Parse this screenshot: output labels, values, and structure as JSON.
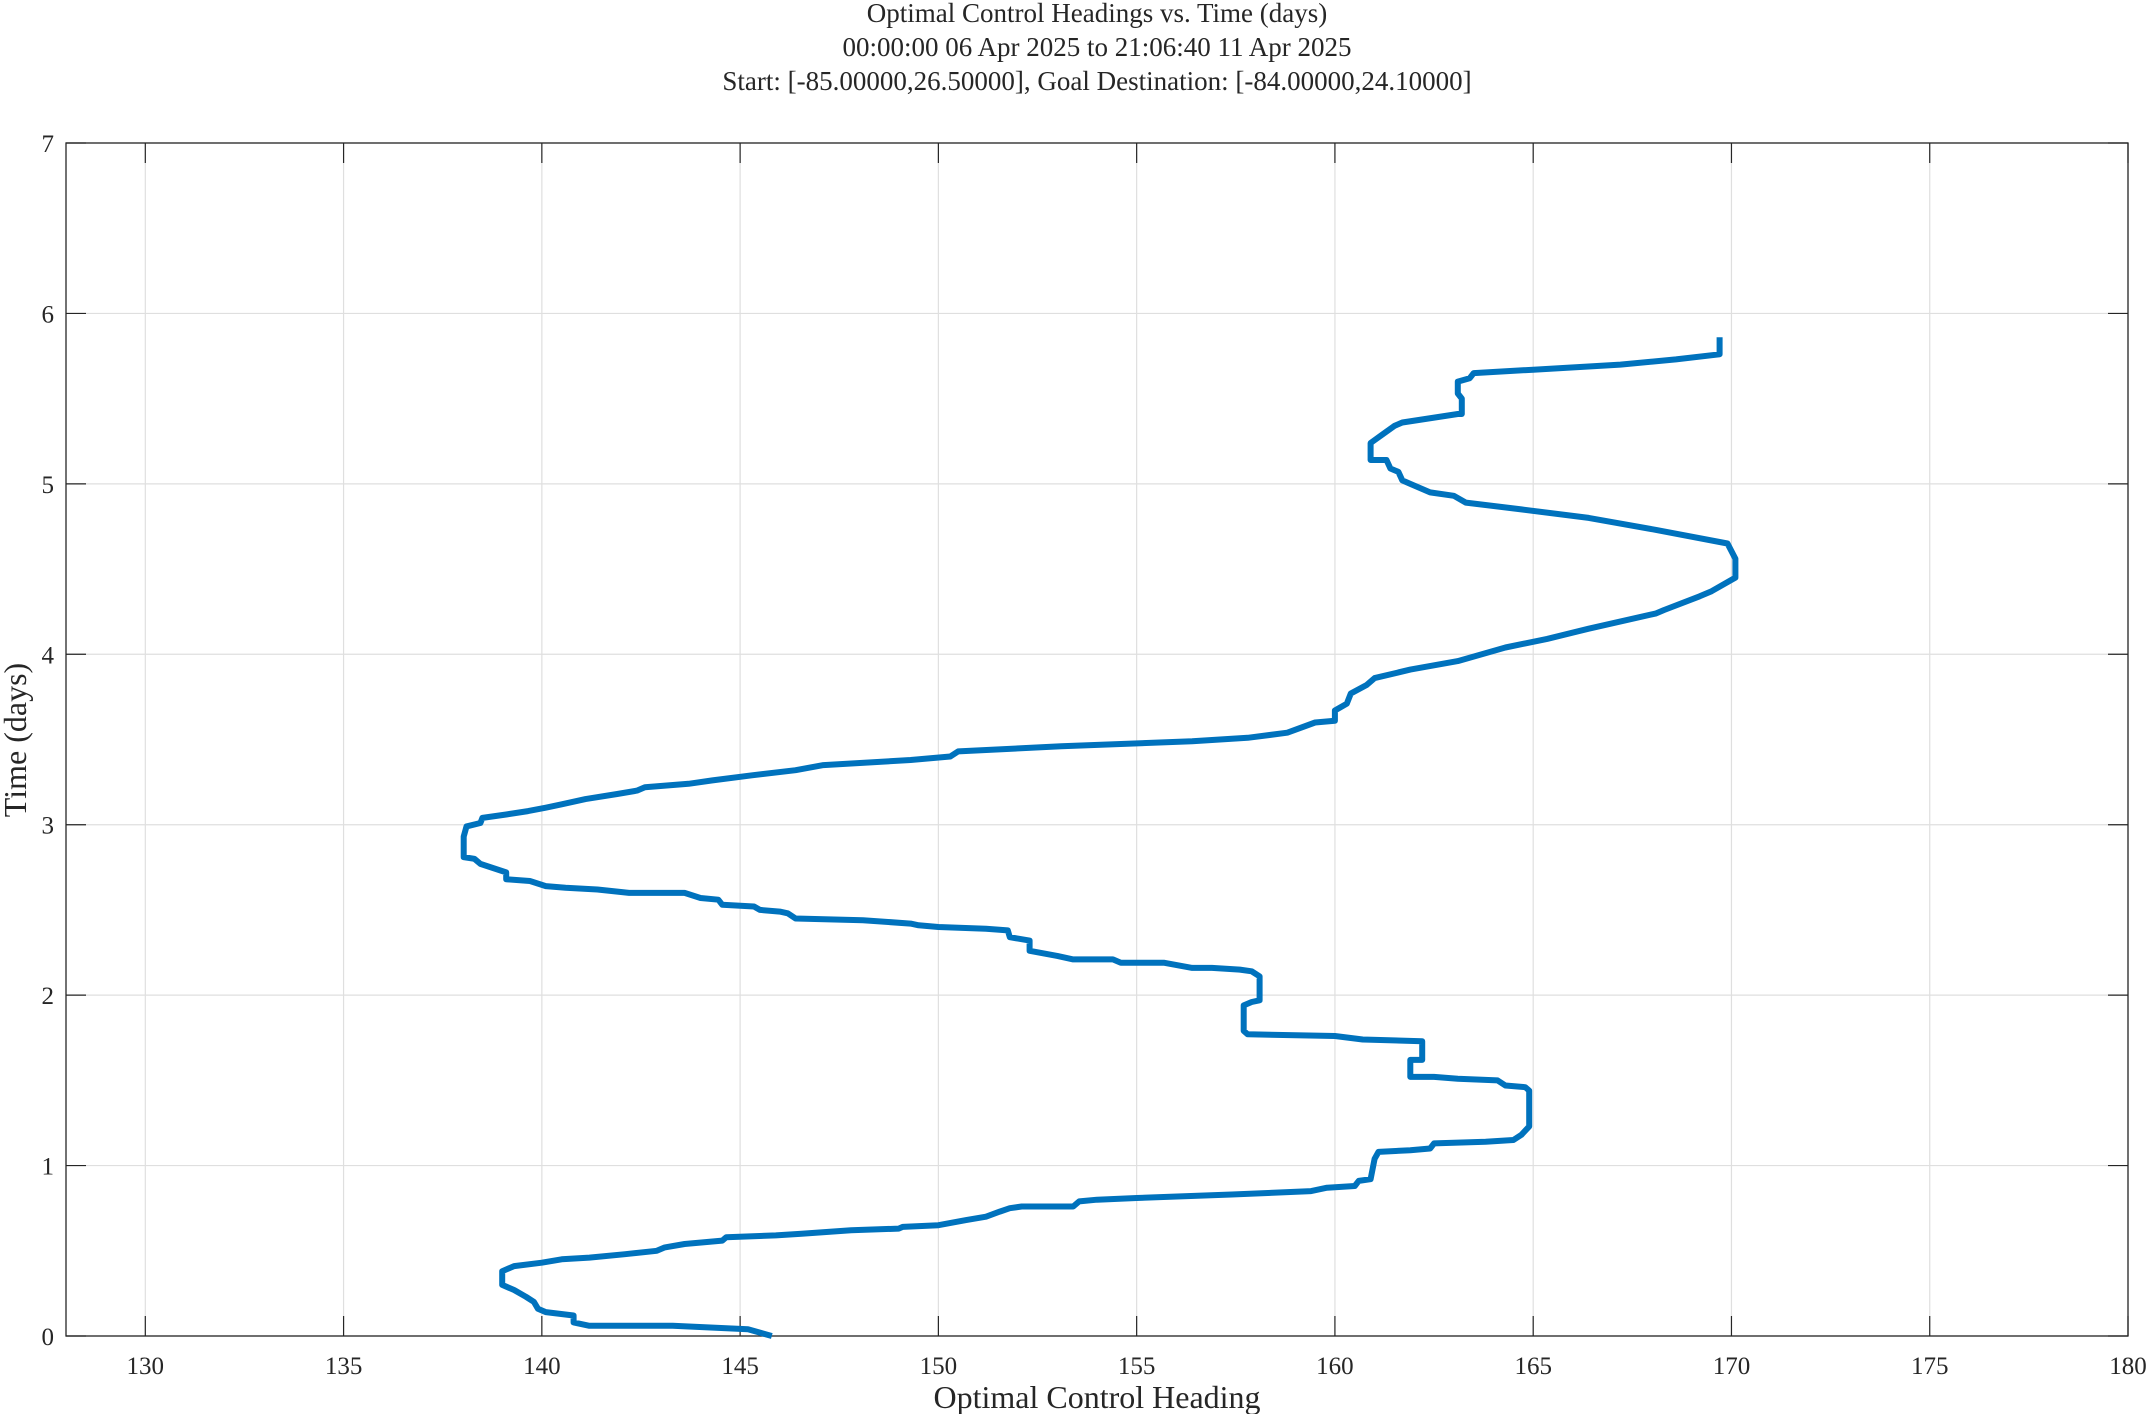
{
  "chart_data": {
    "type": "line",
    "title": [
      "Optimal Control Headings vs. Time (days)",
      "00:00:00 06 Apr 2025 to 21:06:40 11 Apr 2025",
      "Start: [-85.00000,26.50000], Goal Destination: [-84.00000,24.10000]"
    ],
    "xlabel": "Optimal Control Heading",
    "ylabel": "Time (days)",
    "xlim": [
      128,
      180
    ],
    "ylim": [
      0,
      7
    ],
    "xticks": [
      130,
      135,
      140,
      145,
      150,
      155,
      160,
      165,
      170,
      175,
      180
    ],
    "yticks": [
      0,
      1,
      2,
      3,
      4,
      5,
      6,
      7
    ],
    "grid": true,
    "legend": "none",
    "series": [
      {
        "name": "heading",
        "color": "#0072BD",
        "x": [
          145.8,
          145.2,
          143.3,
          141.2,
          140.8,
          140.8,
          140.1,
          139.9,
          139.8,
          139.6,
          139.3,
          139.0,
          139.0,
          139.3,
          140.0,
          140.5,
          141.2,
          142.1,
          142.9,
          143.1,
          143.6,
          144.55,
          144.65,
          145.9,
          146.55,
          147.8,
          149.0,
          149.1,
          150.0,
          150.7,
          151.2,
          151.55,
          151.8,
          152.1,
          153.4,
          153.55,
          154.0,
          155.0,
          157.4,
          159.4,
          159.8,
          160.5,
          160.6,
          160.9,
          161.0,
          161.1,
          161.9,
          162.4,
          162.5,
          163.8,
          164.5,
          164.7,
          164.9,
          164.9,
          164.8,
          164.3,
          164.1,
          163.1,
          162.5,
          161.9,
          161.9,
          162.2,
          162.2,
          160.7,
          160.0,
          157.8,
          157.7,
          157.7,
          157.9,
          158.1,
          158.1,
          157.9,
          157.6,
          156.9,
          156.4,
          155.7,
          154.6,
          154.4,
          153.4,
          153.0,
          152.3,
          152.3,
          151.8,
          151.75,
          151.2,
          150.0,
          149.5,
          149.3,
          148.1,
          146.4,
          146.2,
          146.0,
          145.5,
          145.35,
          144.55,
          144.45,
          144.0,
          143.6,
          143.1,
          142.2,
          141.4,
          140.6,
          140.1,
          139.7,
          139.1,
          139.1,
          138.45,
          138.3,
          138.03,
          138.03,
          138.1,
          138.45,
          138.5,
          139.1,
          139.65,
          140.1,
          140.5,
          141.1,
          141.9,
          142.4,
          142.6,
          143.7,
          144.3,
          145.3,
          146.4,
          147.1,
          149.3,
          150.3,
          150.5,
          153.1,
          156.4,
          157.8,
          158.8,
          159.5,
          160.0,
          160.0,
          160.3,
          160.4,
          160.8,
          161.0,
          161.9,
          163.1,
          164.3,
          165.35,
          166.4,
          168.1,
          168.3,
          169.2,
          169.5,
          170.1,
          170.1,
          169.9,
          168.1,
          166.4,
          164.7,
          163.3,
          163.0,
          162.4,
          161.9,
          161.7,
          161.6,
          161.4,
          161.3,
          160.9,
          160.9,
          161.2,
          161.5,
          161.7,
          163.1,
          163.2,
          163.2,
          163.1,
          163.1,
          163.4,
          163.5,
          165.0,
          167.2,
          168.6,
          169.7,
          169.7
        ],
        "y": [
          0.0,
          0.04,
          0.06,
          0.06,
          0.08,
          0.12,
          0.14,
          0.16,
          0.2,
          0.23,
          0.27,
          0.3,
          0.38,
          0.41,
          0.43,
          0.45,
          0.46,
          0.48,
          0.5,
          0.52,
          0.54,
          0.56,
          0.58,
          0.59,
          0.6,
          0.62,
          0.63,
          0.64,
          0.65,
          0.68,
          0.7,
          0.73,
          0.75,
          0.76,
          0.76,
          0.79,
          0.8,
          0.81,
          0.83,
          0.85,
          0.87,
          0.88,
          0.91,
          0.92,
          1.04,
          1.08,
          1.09,
          1.1,
          1.13,
          1.14,
          1.15,
          1.18,
          1.23,
          1.44,
          1.46,
          1.47,
          1.5,
          1.51,
          1.52,
          1.52,
          1.62,
          1.62,
          1.73,
          1.74,
          1.76,
          1.77,
          1.79,
          1.94,
          1.96,
          1.97,
          2.11,
          2.14,
          2.15,
          2.16,
          2.16,
          2.19,
          2.19,
          2.21,
          2.21,
          2.23,
          2.26,
          2.32,
          2.34,
          2.38,
          2.39,
          2.4,
          2.41,
          2.42,
          2.44,
          2.45,
          2.48,
          2.49,
          2.5,
          2.52,
          2.53,
          2.56,
          2.57,
          2.6,
          2.6,
          2.6,
          2.62,
          2.63,
          2.64,
          2.67,
          2.68,
          2.72,
          2.77,
          2.8,
          2.81,
          2.93,
          2.99,
          3.01,
          3.04,
          3.06,
          3.08,
          3.1,
          3.12,
          3.15,
          3.18,
          3.2,
          3.22,
          3.24,
          3.26,
          3.29,
          3.32,
          3.35,
          3.38,
          3.4,
          3.43,
          3.46,
          3.49,
          3.51,
          3.54,
          3.6,
          3.61,
          3.67,
          3.71,
          3.77,
          3.82,
          3.86,
          3.91,
          3.96,
          4.04,
          4.09,
          4.15,
          4.24,
          4.26,
          4.34,
          4.37,
          4.45,
          4.56,
          4.65,
          4.73,
          4.8,
          4.85,
          4.89,
          4.93,
          4.95,
          5.0,
          5.02,
          5.07,
          5.09,
          5.14,
          5.14,
          5.24,
          5.29,
          5.34,
          5.36,
          5.41,
          5.41,
          5.5,
          5.53,
          5.6,
          5.62,
          5.65,
          5.67,
          5.7,
          5.73,
          5.76,
          5.86
        ]
      }
    ]
  }
}
